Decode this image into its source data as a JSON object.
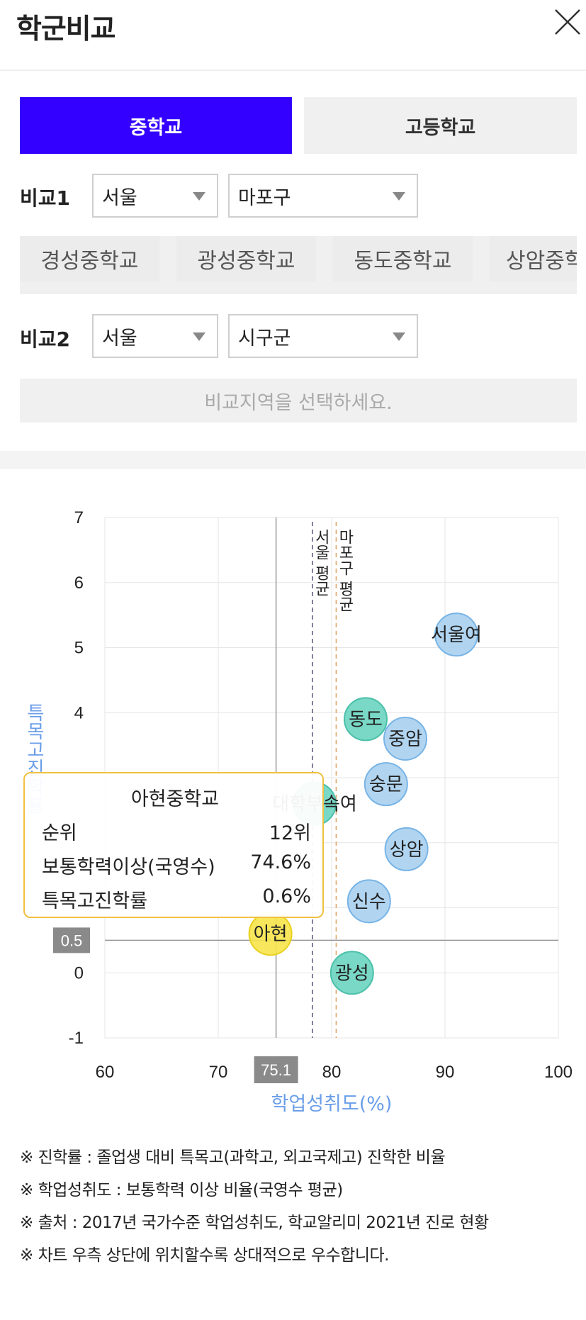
{
  "header": {
    "title": "학군비교",
    "close_icon": "close-icon"
  },
  "tabs": [
    {
      "label": "중학교",
      "active": true
    },
    {
      "label": "고등학교",
      "active": false
    }
  ],
  "compare1": {
    "label": "비교1",
    "city": "서울",
    "district": "마포구"
  },
  "schools": [
    "경성중학교",
    "광성중학교",
    "동도중학교",
    "상암중학교"
  ],
  "compare2": {
    "label": "비교2",
    "city": "서울",
    "district": "시구군"
  },
  "compare2_notice": "비교지역을 선택하세요.",
  "chart_data": {
    "type": "scatter",
    "xlabel": "학업성취도(%)",
    "ylabel": "특목고진학률",
    "xlim": [
      60,
      100
    ],
    "ylim": [
      -1,
      7
    ],
    "x_ticks": [
      "60",
      "70",
      "80",
      "90",
      "100"
    ],
    "y_ticks": [
      "7",
      "6",
      "5",
      "4",
      "0",
      "-1"
    ],
    "grid": true,
    "reference_lines": [
      {
        "label": "서울 평균",
        "x": 78.3
      },
      {
        "label": "마포구 평균",
        "x": 80.4
      }
    ],
    "highlight": {
      "x": 75.1,
      "y": 0.5,
      "x_label": "75.1",
      "y_label": "0.5"
    },
    "points": [
      {
        "label": "서울여",
        "x": 91.0,
        "y": 5.2,
        "color": "#a8d0f0"
      },
      {
        "label": "동도",
        "x": 83.0,
        "y": 3.9,
        "color": "#6ad4c0"
      },
      {
        "label": "중암",
        "x": 86.5,
        "y": 3.6,
        "color": "#a8d0f0"
      },
      {
        "label": "숭문",
        "x": 84.8,
        "y": 2.9,
        "color": "#a8d0f0"
      },
      {
        "label": "대학부속여",
        "x": 78.5,
        "y": 2.6,
        "color": "#6ad4c0"
      },
      {
        "label": "상암",
        "x": 86.6,
        "y": 1.9,
        "color": "#a8d0f0"
      },
      {
        "label": "신수",
        "x": 83.3,
        "y": 1.1,
        "color": "#a8d0f0"
      },
      {
        "label": "아현",
        "x": 74.6,
        "y": 0.6,
        "color": "#f7e44a"
      },
      {
        "label": "광성",
        "x": 81.8,
        "y": 0.0,
        "color": "#6ad4c0"
      }
    ]
  },
  "tooltip": {
    "title": "아현중학교",
    "rows": [
      {
        "key": "순위",
        "value": "12위"
      },
      {
        "key": "보통학력이상(국영수)",
        "value": "74.6%"
      },
      {
        "key": "특목고진학률",
        "value": "0.6%"
      }
    ]
  },
  "notes": [
    "※ 진학률 : 졸업생 대비 특목고(과학고, 외고국제고) 진학한 비율",
    "※ 학업성취도 : 보통학력 이상 비율(국영수 평균)",
    "※ 출처 : 2017년 국가수준 학업성취도, 학교알리미 2021년 진로 현황",
    "※ 차트 우측 상단에 위치할수록 상대적으로 우수합니다."
  ]
}
